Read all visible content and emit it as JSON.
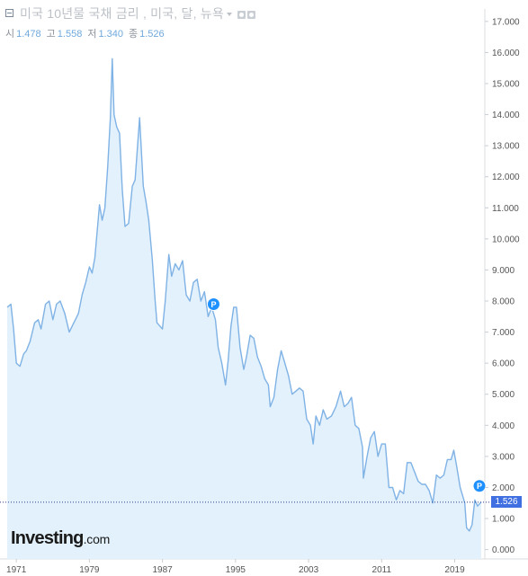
{
  "header": {
    "title": "미국 10년물 국채 금리 , 미국, 달, 뉴욕",
    "ohlc": [
      {
        "label": "시",
        "value": "1.478"
      },
      {
        "label": "고",
        "value": "1.558"
      },
      {
        "label": "저",
        "value": "1.340"
      },
      {
        "label": "종",
        "value": "1.526"
      }
    ],
    "icons": [
      "collapse-icon",
      "dropdown-caret-icon",
      "settings-icon",
      "gear-icon"
    ]
  },
  "logo": {
    "main": "Investing",
    "suffix": ".com"
  },
  "last_price": "1.526",
  "colors": {
    "line": "#7fb2e5",
    "fill": "#e2f1fb",
    "last_price_bg": "#3f6fe0",
    "marker": "#1e90ff"
  },
  "chart_data": {
    "type": "area",
    "title": "미국 10년물 국채 금리 , 미국, 달, 뉴욕",
    "xlabel": "",
    "ylabel": "",
    "xlim": [
      1970.0,
      2022.0
    ],
    "ylim": [
      -0.3,
      17.4
    ],
    "x_ticks": [
      "1971",
      "1979",
      "1987",
      "1995",
      "2003",
      "2011",
      "2019"
    ],
    "x_tick_values": [
      1971,
      1979,
      1987,
      1995,
      2003,
      2011,
      2019
    ],
    "y_ticks": [
      "17.000",
      "16.000",
      "15.000",
      "14.000",
      "13.000",
      "12.000",
      "11.000",
      "10.000",
      "9.000",
      "8.000",
      "7.000",
      "6.000",
      "5.000",
      "4.000",
      "3.000",
      "2.000",
      "1.000",
      "0.000"
    ],
    "y_tick_values": [
      17,
      16,
      15,
      14,
      13,
      12,
      11,
      10,
      9,
      8,
      7,
      6,
      5,
      4,
      3,
      2,
      1,
      0
    ],
    "grid": false,
    "last_value": 1.526,
    "markers": [
      {
        "label": "P",
        "x": 1992.6,
        "y": 7.9
      },
      {
        "label": "P",
        "x": 2021.9,
        "y": 2.05
      }
    ],
    "series": [
      {
        "x": [
          1970.0,
          1970.4,
          1970.7,
          1971.0,
          1971.4,
          1971.8,
          1972.1,
          1972.5,
          1973.0,
          1973.4,
          1973.7,
          1974.2,
          1974.6,
          1975.0,
          1975.4,
          1975.8,
          1976.3,
          1976.8,
          1977.3,
          1977.8,
          1978.2,
          1978.6,
          1979.0,
          1979.3,
          1979.6,
          1979.9,
          1980.1,
          1980.4,
          1980.7,
          1981.0,
          1981.3,
          1981.5,
          1981.7,
          1982.0,
          1982.3,
          1982.6,
          1982.9,
          1983.3,
          1983.7,
          1984.0,
          1984.5,
          1984.9,
          1985.2,
          1985.5,
          1985.9,
          1986.2,
          1986.4,
          1986.7,
          1987.0,
          1987.3,
          1987.7,
          1988.0,
          1988.4,
          1988.8,
          1989.2,
          1989.6,
          1990.0,
          1990.4,
          1990.8,
          1991.2,
          1991.6,
          1992.0,
          1992.4,
          1992.8,
          1993.1,
          1993.5,
          1993.9,
          1994.2,
          1994.5,
          1994.8,
          1995.1,
          1995.5,
          1995.9,
          1996.2,
          1996.6,
          1997.0,
          1997.4,
          1997.8,
          1998.2,
          1998.6,
          1998.8,
          1999.2,
          1999.6,
          2000.0,
          2000.4,
          2000.8,
          2001.2,
          2001.6,
          2002.0,
          2002.4,
          2002.8,
          2003.2,
          2003.5,
          2003.8,
          2004.2,
          2004.6,
          2005.0,
          2005.5,
          2006.0,
          2006.5,
          2006.9,
          2007.3,
          2007.7,
          2008.1,
          2008.5,
          2008.9,
          2009.0,
          2009.4,
          2009.8,
          2010.2,
          2010.6,
          2011.0,
          2011.4,
          2011.8,
          2012.2,
          2012.6,
          2013.0,
          2013.4,
          2013.8,
          2014.2,
          2014.6,
          2015.0,
          2015.4,
          2015.8,
          2016.2,
          2016.6,
          2017.0,
          2017.4,
          2017.8,
          2018.2,
          2018.6,
          2018.9,
          2019.2,
          2019.6,
          2019.9,
          2020.1,
          2020.3,
          2020.6,
          2020.9,
          2021.2,
          2021.5,
          2021.8,
          2021.9
        ],
        "values": [
          7.8,
          7.9,
          7.1,
          6.0,
          5.9,
          6.3,
          6.4,
          6.7,
          7.3,
          7.4,
          7.1,
          7.9,
          8.0,
          7.4,
          7.9,
          8.0,
          7.6,
          7.0,
          7.3,
          7.6,
          8.2,
          8.6,
          9.1,
          8.9,
          9.4,
          10.4,
          11.1,
          10.6,
          11.0,
          12.3,
          13.9,
          15.8,
          14.0,
          13.6,
          13.4,
          11.6,
          10.4,
          10.5,
          11.7,
          11.9,
          13.9,
          11.7,
          11.2,
          10.6,
          9.3,
          8.0,
          7.3,
          7.2,
          7.1,
          8.0,
          9.5,
          8.8,
          9.2,
          9.0,
          9.3,
          8.2,
          8.0,
          8.6,
          8.7,
          8.0,
          8.3,
          7.5,
          7.8,
          7.4,
          6.5,
          6.0,
          5.3,
          6.1,
          7.2,
          7.8,
          7.8,
          6.5,
          5.8,
          6.2,
          6.9,
          6.8,
          6.2,
          5.9,
          5.5,
          5.3,
          4.6,
          4.9,
          5.8,
          6.4,
          6.0,
          5.6,
          5.0,
          5.1,
          5.2,
          5.1,
          4.2,
          4.0,
          3.4,
          4.3,
          4.0,
          4.5,
          4.2,
          4.3,
          4.6,
          5.1,
          4.6,
          4.7,
          4.9,
          4.0,
          3.9,
          3.3,
          2.3,
          3.0,
          3.6,
          3.8,
          3.0,
          3.4,
          3.4,
          2.0,
          2.0,
          1.6,
          1.9,
          1.8,
          2.8,
          2.8,
          2.5,
          2.2,
          2.1,
          2.1,
          1.9,
          1.5,
          2.4,
          2.3,
          2.4,
          2.9,
          2.9,
          3.2,
          2.7,
          2.0,
          1.7,
          1.5,
          0.7,
          0.6,
          0.8,
          1.6,
          1.4,
          1.5,
          1.53
        ]
      }
    ]
  }
}
